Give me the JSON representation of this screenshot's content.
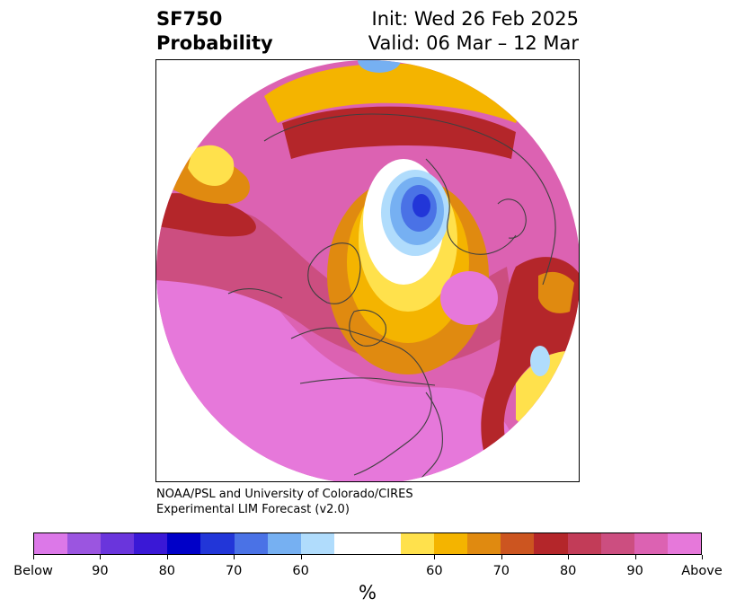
{
  "title": {
    "variable": "SF750",
    "subtitle": "Probability",
    "init": "Init: Wed 26 Feb 2025",
    "valid": "Valid: 06 Mar – 12 Mar"
  },
  "credits": {
    "line1": "NOAA/PSL and University of Colorado/CIRES",
    "line2": "Experimental LIM Forecast (v2.0)"
  },
  "colorbar": {
    "unit": "%",
    "colors": [
      "#dc78e8",
      "#9b55e0",
      "#6a35dc",
      "#3a18d6",
      "#0000c8",
      "#2236d8",
      "#4a72e6",
      "#76b0f2",
      "#b0dcfc",
      "#ffffff",
      "#ffe14c",
      "#f4b400",
      "#e08a10",
      "#cc5520",
      "#b4262a",
      "#c23c58",
      "#cc4e80",
      "#dc62b2",
      "#e678da"
    ],
    "labels": [
      "Below",
      "90",
      "80",
      "70",
      "60",
      "60",
      "70",
      "80",
      "90",
      "Above"
    ]
  },
  "map": {
    "projection": "north-polar-stereographic",
    "colors": {
      "above_max": "#e678da",
      "above_high": "#dc62b2",
      "above_mid": "#cc4e80",
      "above_80": "#b4262a",
      "above_70": "#e08a10",
      "above_60": "#f4b400",
      "above_low": "#ffe14c",
      "neutral": "#ffffff",
      "below_60": "#b0dcfc",
      "below_70": "#76b0f2",
      "below_80": "#4a72e6",
      "below_90": "#2236d8",
      "coast": "#404040"
    }
  }
}
